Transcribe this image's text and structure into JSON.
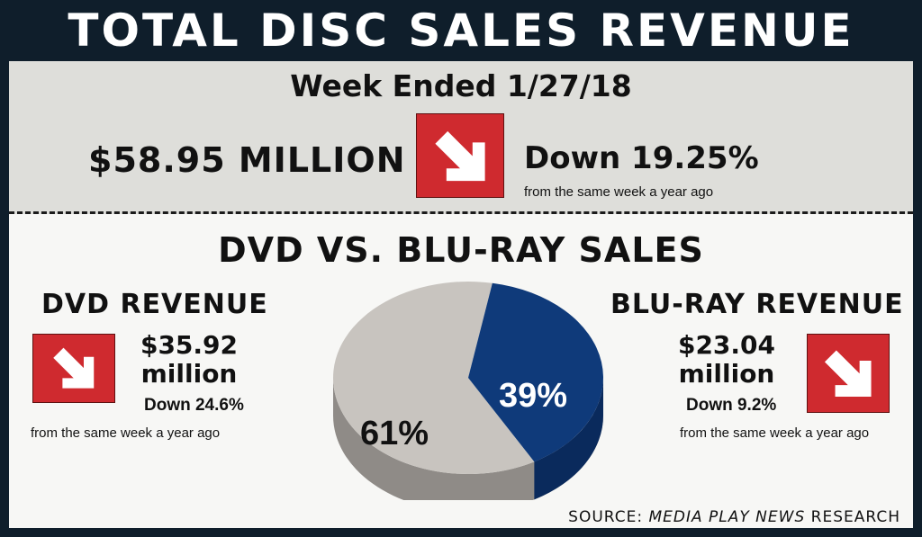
{
  "header": {
    "title": "TOTAL DISC SALES REVENUE"
  },
  "weekly": {
    "week_label": "Week Ended 1/27/18",
    "total": "$58.95 MILLION",
    "change": "Down 19.25%",
    "change_note": "from the same week a year ago",
    "arrow_icon": "down-right-arrow"
  },
  "section_title": "DVD VS. BLU-RAY SALES",
  "dvd": {
    "heading": "DVD REVENUE",
    "amount_line1": "$35.92",
    "amount_line2": "million",
    "change": "Down 24.6%",
    "change_note": "from the same week a year ago"
  },
  "bluray": {
    "heading": "BLU-RAY REVENUE",
    "amount_line1": "$23.04",
    "amount_line2": "million",
    "change": "Down 9.2%",
    "change_note": "from the same week a year ago"
  },
  "source": {
    "prefix": "SOURCE: ",
    "name": "MEDIA PLAY NEWS",
    "suffix": " RESEARCH"
  },
  "colors": {
    "dvd": "#c8c4bf",
    "dvd_side": "#8f8b87",
    "bluray": "#0f3a7a",
    "bluray_side": "#0a2a5c",
    "arrow_box": "#cf2a2f"
  },
  "chart_data": {
    "type": "pie",
    "categories": [
      "DVD",
      "Blu-ray"
    ],
    "values": [
      61,
      39
    ],
    "labels": [
      "61%",
      "39%"
    ]
  }
}
